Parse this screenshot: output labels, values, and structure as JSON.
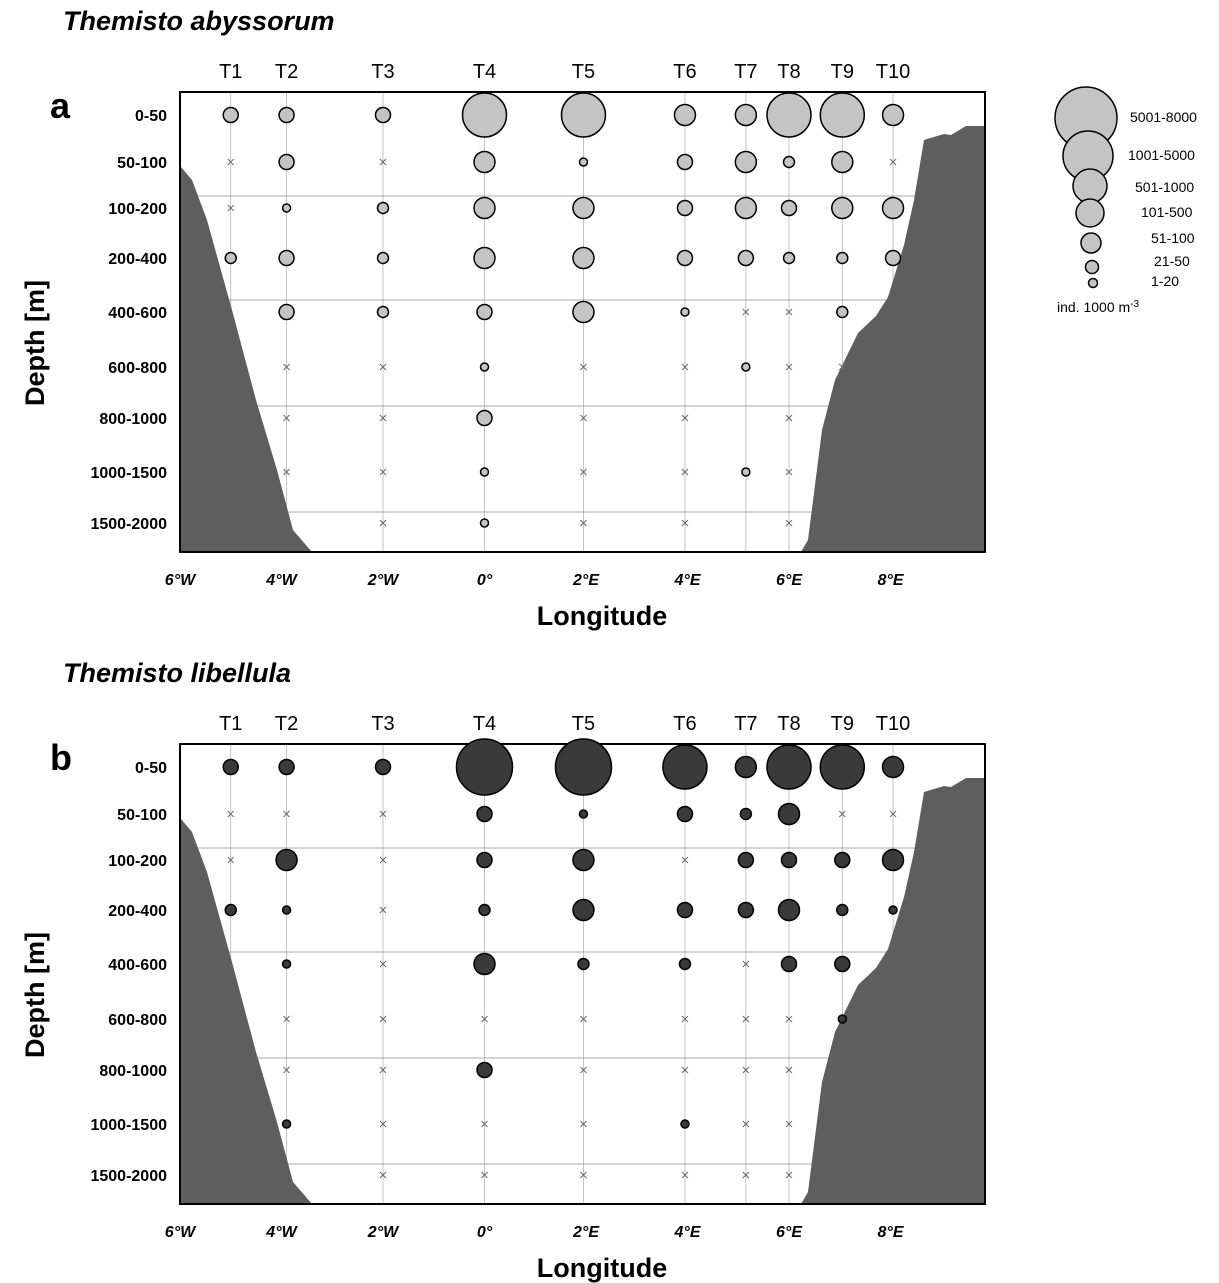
{
  "chart_data": [
    {
      "type": "scatter",
      "panel_label": "a",
      "title": "Themisto abyssorum",
      "xlabel": "Longitude",
      "ylabel": "Depth [m]",
      "xlim": [
        -6,
        10
      ],
      "x_tick_values": [
        -6,
        -4,
        -2,
        0,
        2,
        4,
        6,
        8
      ],
      "x_tick_labels": [
        "6°W",
        "4°W",
        "2°W",
        "0°",
        "2°E",
        "4°E",
        "6°E",
        "8°E"
      ],
      "stations": [
        "T1",
        "T2",
        "T3",
        "T4",
        "T5",
        "T6",
        "T7",
        "T8",
        "T9",
        "T10"
      ],
      "station_lon": [
        -5.0,
        -3.9,
        -2.0,
        0.0,
        1.95,
        3.95,
        5.15,
        6.0,
        7.05,
        8.05
      ],
      "depth_layers": [
        "0-50",
        "50-100",
        "100-200",
        "200-400",
        "400-600",
        "600-800",
        "800-1000",
        "1000-1500",
        "1500-2000"
      ],
      "abundance_classes": [
        [
          3,
          3,
          3,
          6,
          6,
          4,
          4,
          6,
          6,
          4
        ],
        [
          null,
          3,
          null,
          4,
          1,
          3,
          4,
          2,
          4,
          null
        ],
        [
          null,
          1,
          2,
          4,
          4,
          3,
          4,
          3,
          4,
          4
        ],
        [
          2,
          3,
          2,
          4,
          4,
          3,
          3,
          2,
          2,
          3
        ],
        [
          null,
          3,
          2,
          3,
          4,
          1,
          null,
          null,
          2,
          null
        ],
        [
          null,
          null,
          null,
          1,
          null,
          null,
          1,
          null,
          null,
          null
        ],
        [
          null,
          null,
          null,
          3,
          null,
          null,
          null,
          null,
          null,
          null
        ],
        [
          null,
          null,
          null,
          1,
          null,
          null,
          1,
          null,
          null,
          null
        ],
        [
          null,
          null,
          null,
          1,
          null,
          null,
          null,
          null,
          null,
          null
        ]
      ],
      "not_present": [
        [
          null,
          null,
          null,
          null,
          null,
          null,
          null,
          null,
          null,
          null
        ],
        [
          -5.0,
          null,
          -2.0,
          null,
          null,
          null,
          null,
          null,
          null,
          8.05
        ],
        [
          -5.0,
          null,
          null,
          null,
          null,
          null,
          null,
          null,
          null,
          null
        ],
        [
          null,
          null,
          null,
          null,
          null,
          null,
          null,
          null,
          null,
          null
        ],
        [
          null,
          null,
          null,
          null,
          null,
          null,
          5.15,
          6.0,
          null,
          null
        ],
        [
          null,
          -3.9,
          -2.0,
          null,
          1.95,
          3.95,
          null,
          6.0,
          7.05,
          null
        ],
        [
          null,
          -3.9,
          -2.0,
          null,
          1.95,
          3.95,
          null,
          6.0,
          null,
          null
        ],
        [
          null,
          -3.9,
          -2.0,
          null,
          1.95,
          3.95,
          null,
          6.0,
          null,
          null
        ],
        [
          null,
          null,
          -2.0,
          null,
          1.95,
          3.95,
          null,
          6.0,
          null,
          null
        ]
      ]
    },
    {
      "type": "scatter",
      "panel_label": "b",
      "title": "Themisto libellula",
      "xlabel": "Longitude",
      "ylabel": "Depth [m]",
      "xlim": [
        -6,
        10
      ],
      "x_tick_values": [
        -6,
        -4,
        -2,
        0,
        2,
        4,
        6,
        8
      ],
      "x_tick_labels": [
        "6°W",
        "4°W",
        "2°W",
        "0°",
        "2°E",
        "4°E",
        "6°E",
        "8°E"
      ],
      "stations": [
        "T1",
        "T2",
        "T3",
        "T4",
        "T5",
        "T6",
        "T7",
        "T8",
        "T9",
        "T10"
      ],
      "station_lon": [
        -5.0,
        -3.9,
        -2.0,
        0.0,
        1.95,
        3.95,
        5.15,
        6.0,
        7.05,
        8.05
      ],
      "depth_layers": [
        "0-50",
        "50-100",
        "100-200",
        "200-400",
        "400-600",
        "600-800",
        "800-1000",
        "1000-1500",
        "1500-2000"
      ],
      "abundance_classes": [
        [
          3,
          3,
          3,
          7,
          7,
          6,
          4,
          6,
          6,
          4
        ],
        [
          null,
          null,
          null,
          3,
          1,
          3,
          2,
          4,
          null,
          null
        ],
        [
          null,
          4,
          null,
          3,
          4,
          null,
          3,
          3,
          3,
          4
        ],
        [
          2,
          1,
          null,
          2,
          4,
          3,
          3,
          4,
          2,
          1
        ],
        [
          null,
          1,
          null,
          4,
          2,
          2,
          null,
          3,
          3,
          null
        ],
        [
          null,
          null,
          null,
          null,
          null,
          null,
          null,
          null,
          1,
          null
        ],
        [
          null,
          null,
          null,
          3,
          null,
          null,
          null,
          null,
          null,
          null
        ],
        [
          null,
          1,
          null,
          null,
          null,
          1,
          null,
          null,
          null,
          null
        ],
        [
          null,
          null,
          null,
          null,
          null,
          null,
          null,
          null,
          null,
          null
        ]
      ],
      "not_present": [
        [
          null,
          null,
          null,
          null,
          null,
          null,
          null,
          null,
          null,
          null
        ],
        [
          -5.0,
          -3.9,
          -2.0,
          null,
          null,
          null,
          null,
          null,
          7.05,
          8.05
        ],
        [
          -5.0,
          null,
          -2.0,
          null,
          null,
          3.95,
          null,
          null,
          null,
          null
        ],
        [
          null,
          null,
          -2.0,
          null,
          null,
          null,
          null,
          null,
          null,
          null
        ],
        [
          null,
          null,
          -2.0,
          null,
          null,
          null,
          5.15,
          null,
          null,
          null
        ],
        [
          null,
          -3.9,
          -2.0,
          0.0,
          1.95,
          3.95,
          5.15,
          6.0,
          null,
          null
        ],
        [
          null,
          -3.9,
          -2.0,
          null,
          1.95,
          3.95,
          5.15,
          6.0,
          null,
          null
        ],
        [
          null,
          null,
          -2.0,
          0.0,
          1.95,
          null,
          5.15,
          6.0,
          null,
          null
        ],
        [
          null,
          null,
          -2.0,
          0.0,
          1.95,
          3.95,
          5.15,
          6.0,
          null,
          null
        ]
      ]
    }
  ],
  "legend": {
    "classes": [
      "5001-8000",
      "1001-5000",
      "501-1000",
      "101-500",
      "51-100",
      "21-50",
      "1-20"
    ],
    "unit": "ind. 1000 m",
    "unit_superscript": "-3"
  },
  "colors": {
    "panel_a_marker": "#c4c4c4",
    "panel_b_marker": "#3a3a3a",
    "bathymetry": "#5e5e5e",
    "frame": "#000000"
  }
}
